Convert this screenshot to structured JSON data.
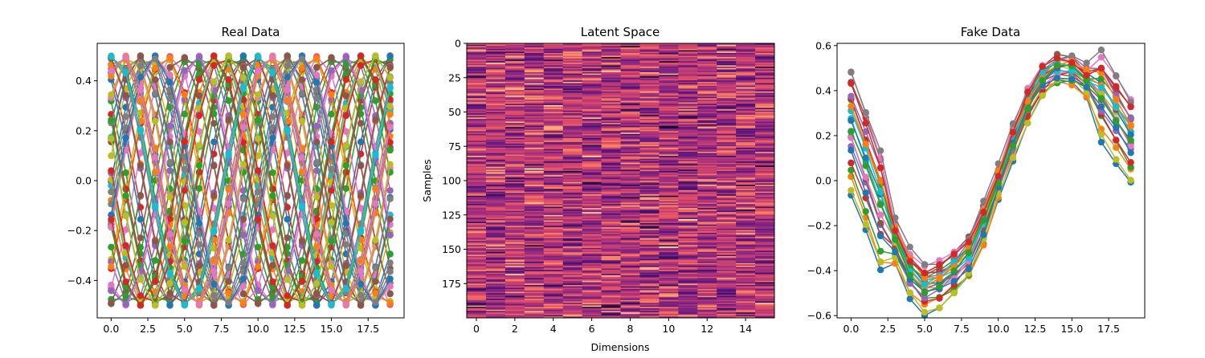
{
  "chart_data": [
    {
      "type": "line",
      "title": "Real Data",
      "xlabel": "",
      "ylabel": "",
      "xlim": [
        -0.95,
        19.95
      ],
      "ylim": [
        -0.55,
        0.55
      ],
      "x_ticks": [
        0,
        2.5,
        5,
        7.5,
        10,
        12.5,
        15,
        17.5
      ],
      "x_tick_labels": [
        "0.0",
        "2.5",
        "5.0",
        "7.5",
        "10.0",
        "12.5",
        "15.0",
        "17.5"
      ],
      "y_ticks": [
        -0.4,
        -0.2,
        0,
        0.2,
        0.4
      ],
      "y_tick_labels": [
        "−0.4",
        "−0.2",
        "0.0",
        "0.2",
        "0.4"
      ],
      "markers": true,
      "n_points_per_series": 20,
      "n_series": 200,
      "series_model": "y = 0.5*sin(2*pi*t/10 + phase)",
      "amplitude": 0.5,
      "period": 10,
      "phases_radians": [
        0.0,
        0.7,
        1.4,
        2.1,
        2.8,
        3.5,
        4.2,
        4.9,
        5.6,
        0.35,
        1.05,
        1.75,
        2.45,
        3.15,
        3.85,
        4.55,
        5.25,
        5.95,
        0.2,
        1.2,
        2.2,
        3.3,
        4.4,
        5.5
      ]
    },
    {
      "type": "heatmap",
      "title": "Latent Space",
      "xlabel": "Dimensions",
      "ylabel": "Samples",
      "rows": 200,
      "cols": 16,
      "colormap": "magma",
      "value_range": [
        0,
        1
      ],
      "distribution": "normal random values, mostly mid-range (magenta/red), occasional dark and light stripes",
      "x_ticks": [
        0,
        2,
        4,
        6,
        8,
        10,
        12,
        14
      ],
      "x_tick_labels": [
        "0",
        "2",
        "4",
        "6",
        "8",
        "10",
        "12",
        "14"
      ],
      "y_ticks": [
        0,
        25,
        50,
        75,
        100,
        125,
        150,
        175
      ],
      "y_tick_labels": [
        "0",
        "25",
        "50",
        "75",
        "100",
        "125",
        "150",
        "175"
      ]
    },
    {
      "type": "line",
      "title": "Fake Data",
      "xlabel": "",
      "ylabel": "",
      "xlim": [
        -0.95,
        19.95
      ],
      "ylim": [
        -0.61,
        0.61
      ],
      "x_ticks": [
        0,
        2.5,
        5,
        7.5,
        10,
        12.5,
        15,
        17.5
      ],
      "x_tick_labels": [
        "0.0",
        "2.5",
        "5.0",
        "7.5",
        "10.0",
        "12.5",
        "15.0",
        "17.5"
      ],
      "y_ticks": [
        -0.6,
        -0.4,
        -0.2,
        0,
        0.2,
        0.4,
        0.6
      ],
      "y_tick_labels": [
        "−0.6",
        "−0.4",
        "−0.2",
        "0.0",
        "0.2",
        "0.4",
        "0.6"
      ],
      "markers": true,
      "n_points_per_series": 20,
      "mean_curve": [
        0.25,
        0.08,
        -0.1,
        -0.26,
        -0.4,
        -0.47,
        -0.45,
        -0.4,
        -0.33,
        -0.18,
        0.0,
        0.18,
        0.34,
        0.45,
        0.5,
        0.5,
        0.45,
        0.4,
        0.3,
        0.2
      ],
      "series_offsets": [
        -0.35,
        -0.28,
        -0.22,
        -0.17,
        -0.12,
        -0.08,
        -0.05,
        -0.02,
        0.0,
        0.02,
        0.04,
        0.07,
        0.1,
        0.13,
        0.16,
        0.2,
        0.24,
        0.27,
        -0.31,
        0.05,
        -0.14,
        0.11,
        -0.03,
        0.18
      ]
    }
  ],
  "colors": {
    "cycle": [
      "#1f77b4",
      "#ff7f0e",
      "#2ca02c",
      "#d62728",
      "#9467bd",
      "#8c564b",
      "#e377c2",
      "#7f7f7f",
      "#bcbd22",
      "#17becf"
    ]
  }
}
